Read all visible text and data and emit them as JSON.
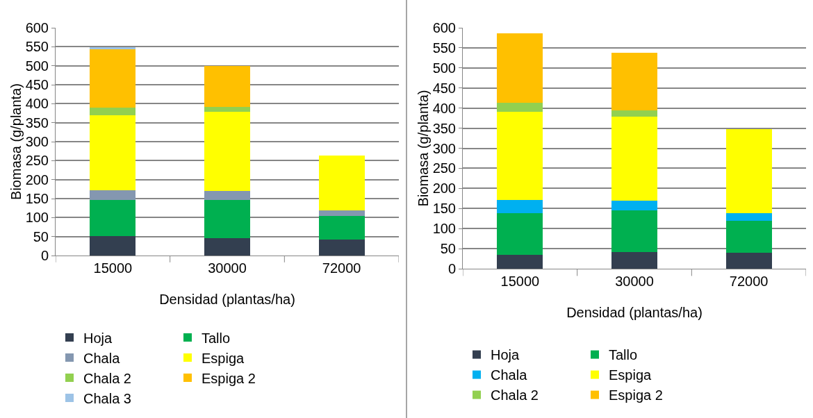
{
  "chart_data": [
    {
      "type": "bar",
      "stacked": true,
      "xlabel": "Densidad (plantas/ha)",
      "ylabel": "Biomasa (g/planta)",
      "categories": [
        "15000",
        "30000",
        "72000"
      ],
      "ylim": [
        0,
        600
      ],
      "yticks": [
        0,
        50,
        100,
        150,
        200,
        250,
        300,
        350,
        400,
        450,
        500,
        550,
        600
      ],
      "grid": "y",
      "legend": "bottom",
      "series": [
        {
          "name": "Hoja",
          "color": "#333f50",
          "values": [
            52,
            46,
            42
          ]
        },
        {
          "name": "Tallo",
          "color": "#00b050",
          "values": [
            95,
            101,
            62
          ]
        },
        {
          "name": "Chala",
          "color": "#8497b0",
          "values": [
            25,
            23,
            15
          ]
        },
        {
          "name": "Espiga",
          "color": "#ffff00",
          "values": [
            198,
            209,
            144
          ]
        },
        {
          "name": "Chala 2",
          "color": "#92d050",
          "values": [
            19,
            13,
            0
          ]
        },
        {
          "name": "Espiga 2",
          "color": "#ffc000",
          "values": [
            156,
            107,
            0
          ]
        },
        {
          "name": "Chala 3",
          "color": "#9dc3e6",
          "values": [
            3,
            0,
            0
          ]
        }
      ]
    },
    {
      "type": "bar",
      "stacked": true,
      "xlabel": "Densidad (plantas/ha)",
      "ylabel": "Biomasa (g/planta)",
      "categories": [
        "15000",
        "30000",
        "72000"
      ],
      "ylim": [
        0,
        600
      ],
      "yticks": [
        0,
        50,
        100,
        150,
        200,
        250,
        300,
        350,
        400,
        450,
        500,
        550,
        600
      ],
      "grid": "y",
      "legend": "bottom",
      "series": [
        {
          "name": "Hoja",
          "color": "#333f50",
          "values": [
            35,
            42,
            40
          ]
        },
        {
          "name": "Tallo",
          "color": "#00b050",
          "values": [
            104,
            104,
            80
          ]
        },
        {
          "name": "Chala",
          "color": "#00b0f0",
          "values": [
            32,
            24,
            19
          ]
        },
        {
          "name": "Espiga",
          "color": "#ffff00",
          "values": [
            220,
            209,
            208
          ]
        },
        {
          "name": "Chala 2",
          "color": "#92d050",
          "values": [
            22,
            16,
            0
          ]
        },
        {
          "name": "Espiga 2",
          "color": "#ffc000",
          "values": [
            174,
            143,
            0
          ]
        }
      ]
    }
  ]
}
